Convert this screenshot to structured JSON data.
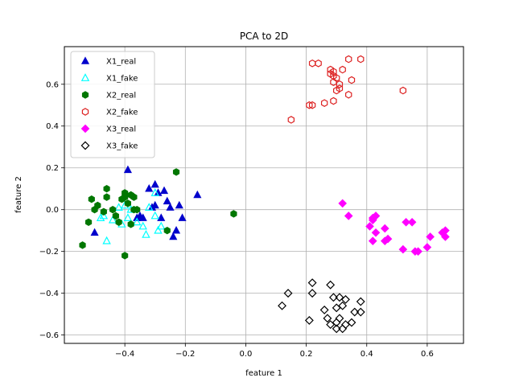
{
  "chart_data": {
    "type": "scatter",
    "title": "PCA to 2D",
    "xlabel": "feature 1",
    "ylabel": "feature 2",
    "xlim": [
      -0.6,
      0.72
    ],
    "ylim": [
      -0.64,
      0.78
    ],
    "xticks": [
      -0.4,
      -0.2,
      0.0,
      0.2,
      0.4,
      0.6
    ],
    "xtick_labels": [
      "−0.4",
      "−0.2",
      "0.0",
      "0.2",
      "0.4",
      "0.6"
    ],
    "yticks": [
      -0.6,
      -0.4,
      -0.2,
      0.0,
      0.2,
      0.4,
      0.6
    ],
    "ytick_labels": [
      "−0.6",
      "−0.4",
      "−0.2",
      "0.0",
      "0.2",
      "0.4",
      "0.6"
    ],
    "grid": true,
    "legend_position": "upper-left",
    "series": [
      {
        "name": "X1_real",
        "marker": "triangle",
        "filled": true,
        "color": "#0000cc",
        "points": [
          [
            -0.39,
            0.19
          ],
          [
            -0.36,
            -0.04
          ],
          [
            -0.34,
            -0.04
          ],
          [
            -0.32,
            0.1
          ],
          [
            -0.3,
            0.12
          ],
          [
            -0.29,
            0.08
          ],
          [
            -0.3,
            0.02
          ],
          [
            -0.28,
            -0.04
          ],
          [
            -0.26,
            0.04
          ],
          [
            -0.25,
            0.01
          ],
          [
            -0.24,
            -0.13
          ],
          [
            -0.23,
            -0.1
          ],
          [
            -0.22,
            0.02
          ],
          [
            -0.21,
            -0.04
          ],
          [
            -0.16,
            0.07
          ],
          [
            -0.5,
            -0.11
          ],
          [
            -0.27,
            0.09
          ],
          [
            -0.31,
            0.01
          ],
          [
            -0.35,
            -0.03
          ]
        ]
      },
      {
        "name": "X1_fake",
        "marker": "triangle",
        "filled": false,
        "color": "#00ffff",
        "points": [
          [
            -0.48,
            -0.04
          ],
          [
            -0.47,
            -0.03
          ],
          [
            -0.44,
            -0.05
          ],
          [
            -0.41,
            -0.07
          ],
          [
            -0.4,
            0.02
          ],
          [
            -0.38,
            0.0
          ],
          [
            -0.36,
            -0.06
          ],
          [
            -0.34,
            -0.08
          ],
          [
            -0.33,
            -0.12
          ],
          [
            -0.32,
            0.01
          ],
          [
            -0.3,
            -0.03
          ],
          [
            -0.29,
            -0.1
          ],
          [
            -0.28,
            -0.08
          ],
          [
            -0.3,
            0.08
          ],
          [
            -0.46,
            -0.15
          ],
          [
            -0.39,
            -0.04
          ],
          [
            -0.42,
            0.01
          ]
        ]
      },
      {
        "name": "X2_real",
        "marker": "hexagon",
        "filled": true,
        "color": "#007700",
        "points": [
          [
            -0.54,
            -0.17
          ],
          [
            -0.52,
            -0.06
          ],
          [
            -0.51,
            0.05
          ],
          [
            -0.5,
            0.0
          ],
          [
            -0.49,
            0.02
          ],
          [
            -0.47,
            -0.01
          ],
          [
            -0.46,
            0.06
          ],
          [
            -0.46,
            0.1
          ],
          [
            -0.44,
            0.0
          ],
          [
            -0.43,
            -0.03
          ],
          [
            -0.42,
            -0.06
          ],
          [
            -0.4,
            0.08
          ],
          [
            -0.4,
            0.06
          ],
          [
            -0.39,
            0.03
          ],
          [
            -0.38,
            -0.07
          ],
          [
            -0.37,
            0.0
          ],
          [
            -0.37,
            0.06
          ],
          [
            -0.36,
            0.0
          ],
          [
            -0.4,
            -0.22
          ],
          [
            -0.26,
            -0.1
          ],
          [
            -0.23,
            0.18
          ],
          [
            -0.04,
            -0.02
          ],
          [
            -0.41,
            0.05
          ],
          [
            -0.38,
            0.07
          ]
        ]
      },
      {
        "name": "X2_fake",
        "marker": "hexagon",
        "filled": false,
        "color": "#dd2222",
        "points": [
          [
            0.15,
            0.43
          ],
          [
            0.21,
            0.5
          ],
          [
            0.22,
            0.5
          ],
          [
            0.22,
            0.7
          ],
          [
            0.24,
            0.7
          ],
          [
            0.26,
            0.51
          ],
          [
            0.28,
            0.65
          ],
          [
            0.28,
            0.67
          ],
          [
            0.29,
            0.61
          ],
          [
            0.29,
            0.64
          ],
          [
            0.3,
            0.63
          ],
          [
            0.3,
            0.57
          ],
          [
            0.31,
            0.6
          ],
          [
            0.32,
            0.67
          ],
          [
            0.34,
            0.55
          ],
          [
            0.34,
            0.72
          ],
          [
            0.35,
            0.62
          ],
          [
            0.38,
            0.72
          ],
          [
            0.52,
            0.57
          ],
          [
            0.29,
            0.52
          ],
          [
            0.31,
            0.58
          ],
          [
            0.29,
            0.66
          ]
        ]
      },
      {
        "name": "X3_real",
        "marker": "diamond",
        "filled": true,
        "color": "#ff00ff",
        "points": [
          [
            0.32,
            0.03
          ],
          [
            0.34,
            -0.03
          ],
          [
            0.41,
            -0.08
          ],
          [
            0.42,
            -0.15
          ],
          [
            0.42,
            -0.04
          ],
          [
            0.43,
            -0.03
          ],
          [
            0.43,
            -0.11
          ],
          [
            0.46,
            -0.09
          ],
          [
            0.46,
            -0.15
          ],
          [
            0.47,
            -0.14
          ],
          [
            0.52,
            -0.19
          ],
          [
            0.53,
            -0.06
          ],
          [
            0.55,
            -0.06
          ],
          [
            0.56,
            -0.2
          ],
          [
            0.57,
            -0.2
          ],
          [
            0.6,
            -0.18
          ],
          [
            0.61,
            -0.13
          ],
          [
            0.65,
            -0.11
          ],
          [
            0.66,
            -0.1
          ],
          [
            0.66,
            -0.13
          ],
          [
            0.42,
            -0.05
          ]
        ]
      },
      {
        "name": "X3_fake",
        "marker": "diamond",
        "filled": false,
        "color": "#000000",
        "points": [
          [
            0.12,
            -0.46
          ],
          [
            0.14,
            -0.4
          ],
          [
            0.21,
            -0.53
          ],
          [
            0.22,
            -0.4
          ],
          [
            0.22,
            -0.35
          ],
          [
            0.26,
            -0.48
          ],
          [
            0.27,
            -0.52
          ],
          [
            0.28,
            -0.36
          ],
          [
            0.28,
            -0.55
          ],
          [
            0.29,
            -0.42
          ],
          [
            0.3,
            -0.57
          ],
          [
            0.3,
            -0.54
          ],
          [
            0.31,
            -0.42
          ],
          [
            0.31,
            -0.52
          ],
          [
            0.32,
            -0.46
          ],
          [
            0.32,
            -0.57
          ],
          [
            0.33,
            -0.43
          ],
          [
            0.33,
            -0.55
          ],
          [
            0.35,
            -0.54
          ],
          [
            0.36,
            -0.49
          ],
          [
            0.38,
            -0.49
          ],
          [
            0.38,
            -0.44
          ],
          [
            0.3,
            -0.47
          ]
        ]
      }
    ]
  }
}
